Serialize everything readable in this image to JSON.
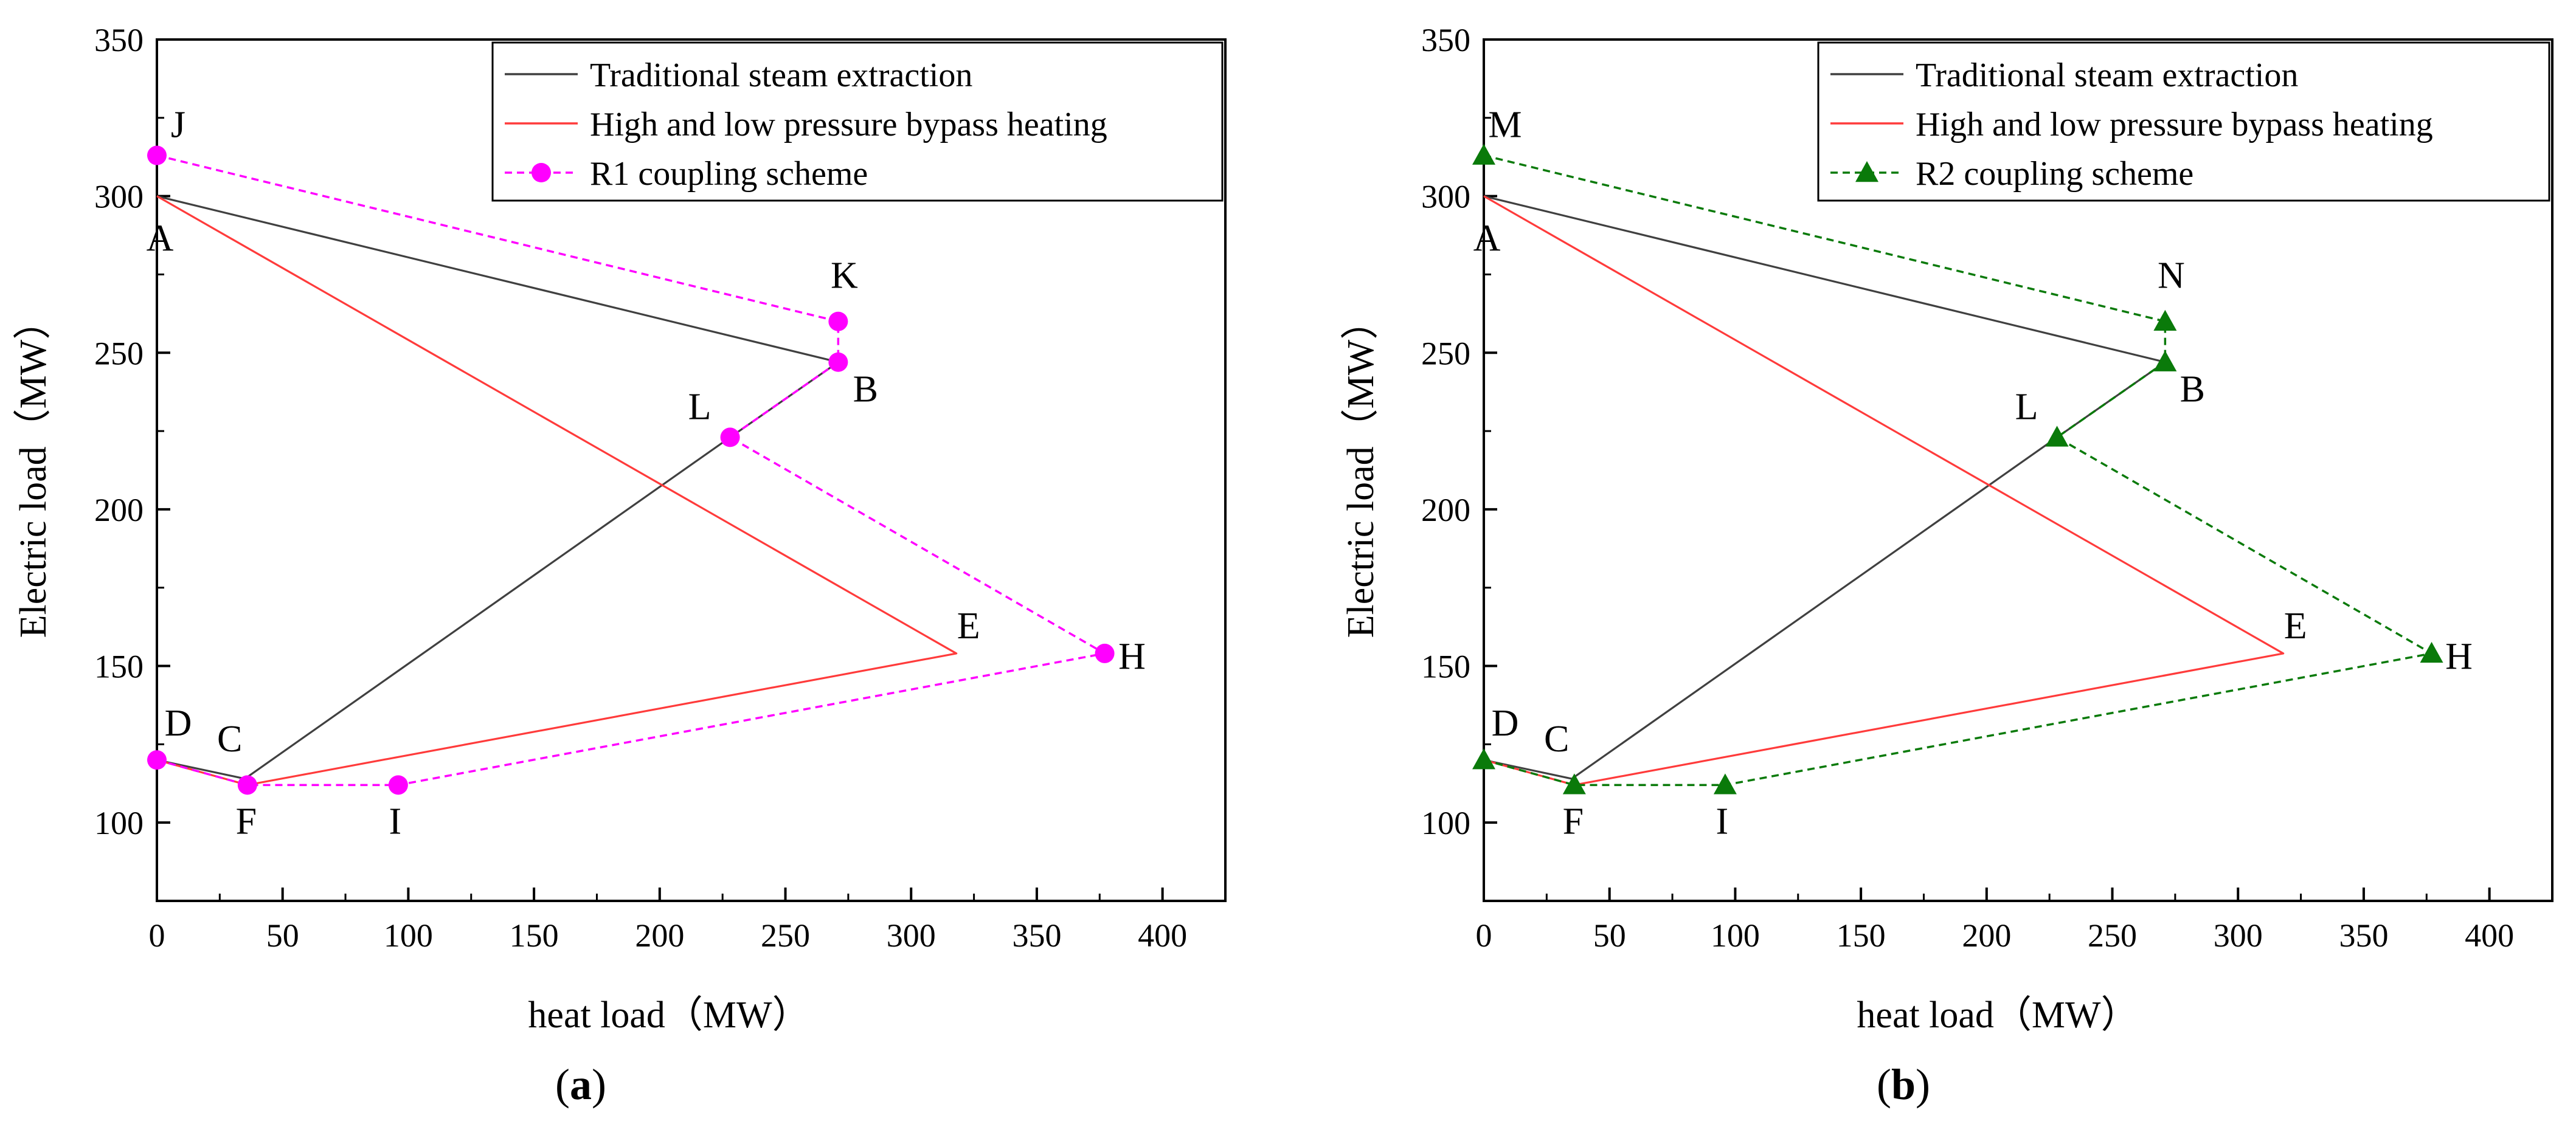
{
  "colors": {
    "traditional": "#404040",
    "bypass": "#ff3b3b",
    "r1": "#ff00ff",
    "r2": "#0a7a0a",
    "axis": "#000000"
  },
  "chart_data": [
    {
      "type": "line",
      "panel_label": "a",
      "xlabel": "heat load（MW）",
      "ylabel": "Electric load（MW）",
      "xlim": [
        0,
        425
      ],
      "ylim": [
        75,
        350
      ],
      "xticks": [
        0,
        50,
        100,
        150,
        200,
        250,
        300,
        350,
        400
      ],
      "yticks": [
        100,
        150,
        200,
        250,
        300,
        350
      ],
      "legend_position": "top-right",
      "series": [
        {
          "key": "traditional",
          "name": "Traditional steam extraction",
          "style": "solid",
          "marker": "none",
          "points": [
            [
              0,
              300
            ],
            [
              271,
              247
            ],
            [
              228,
              223
            ],
            [
              35,
              114
            ],
            [
              0,
              120
            ]
          ]
        },
        {
          "key": "bypass",
          "name": "High and low pressure bypass heating",
          "style": "solid",
          "marker": "none",
          "points": [
            [
              0,
              300
            ],
            [
              318,
              154
            ],
            [
              36,
              112
            ],
            [
              0,
              120
            ]
          ]
        },
        {
          "key": "r1",
          "name": "R1 coupling scheme",
          "style": "dashed",
          "marker": "circle",
          "points": [
            [
              0,
              313
            ],
            [
              271,
              260
            ],
            [
              271,
              247
            ],
            [
              228,
              223
            ],
            [
              377,
              154
            ],
            [
              96,
              112
            ],
            [
              36,
              112
            ],
            [
              0,
              120
            ]
          ]
        }
      ],
      "annotations": [
        {
          "text": "J",
          "x": 0,
          "y": 313
        },
        {
          "text": "A",
          "x": 0,
          "y": 300
        },
        {
          "text": "K",
          "x": 271,
          "y": 260
        },
        {
          "text": "B",
          "x": 271,
          "y": 247
        },
        {
          "text": "L",
          "x": 228,
          "y": 223
        },
        {
          "text": "E",
          "x": 318,
          "y": 154
        },
        {
          "text": "H",
          "x": 377,
          "y": 154
        },
        {
          "text": "D",
          "x": 0,
          "y": 120
        },
        {
          "text": "C",
          "x": 35,
          "y": 114
        },
        {
          "text": "F",
          "x": 36,
          "y": 112
        },
        {
          "text": "I",
          "x": 96,
          "y": 112
        }
      ]
    },
    {
      "type": "line",
      "panel_label": "b",
      "xlabel": "heat load（MW）",
      "ylabel": "Electric load（MW）",
      "xlim": [
        0,
        425
      ],
      "ylim": [
        75,
        350
      ],
      "xticks": [
        0,
        50,
        100,
        150,
        200,
        250,
        300,
        350,
        400
      ],
      "yticks": [
        100,
        150,
        200,
        250,
        300,
        350
      ],
      "legend_position": "top-right",
      "series": [
        {
          "key": "traditional",
          "name": "Traditional steam extraction",
          "style": "solid",
          "marker": "none",
          "points": [
            [
              0,
              300
            ],
            [
              271,
              247
            ],
            [
              228,
              223
            ],
            [
              35,
              114
            ],
            [
              0,
              120
            ]
          ]
        },
        {
          "key": "bypass",
          "name": "High and low pressure bypass heating",
          "style": "solid",
          "marker": "none",
          "points": [
            [
              0,
              300
            ],
            [
              318,
              154
            ],
            [
              36,
              112
            ],
            [
              0,
              120
            ]
          ]
        },
        {
          "key": "r2",
          "name": "R2 coupling scheme",
          "style": "dashed",
          "marker": "triangle",
          "points": [
            [
              0,
              313
            ],
            [
              271,
              260
            ],
            [
              271,
              247
            ],
            [
              228,
              223
            ],
            [
              377,
              154
            ],
            [
              96,
              112
            ],
            [
              36,
              112
            ],
            [
              0,
              120
            ]
          ]
        }
      ],
      "annotations": [
        {
          "text": "M",
          "x": 0,
          "y": 313
        },
        {
          "text": "A",
          "x": 0,
          "y": 300
        },
        {
          "text": "N",
          "x": 271,
          "y": 260
        },
        {
          "text": "B",
          "x": 271,
          "y": 247
        },
        {
          "text": "L",
          "x": 228,
          "y": 223
        },
        {
          "text": "E",
          "x": 318,
          "y": 154
        },
        {
          "text": "H",
          "x": 377,
          "y": 154
        },
        {
          "text": "D",
          "x": 0,
          "y": 120
        },
        {
          "text": "C",
          "x": 35,
          "y": 114
        },
        {
          "text": "F",
          "x": 36,
          "y": 112
        },
        {
          "text": "I",
          "x": 96,
          "y": 112
        }
      ]
    }
  ]
}
